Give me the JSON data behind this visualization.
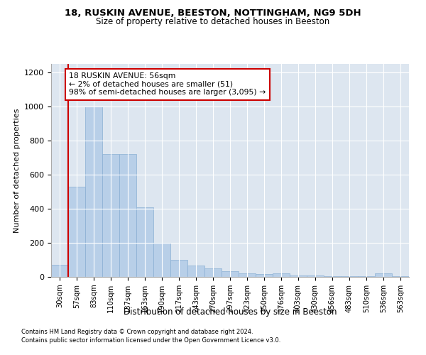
{
  "title1": "18, RUSKIN AVENUE, BEESTON, NOTTINGHAM, NG9 5DH",
  "title2": "Size of property relative to detached houses in Beeston",
  "xlabel": "Distribution of detached houses by size in Beeston",
  "ylabel": "Number of detached properties",
  "footer1": "Contains HM Land Registry data © Crown copyright and database right 2024.",
  "footer2": "Contains public sector information licensed under the Open Government Licence v3.0.",
  "categories": [
    "30sqm",
    "57sqm",
    "83sqm",
    "110sqm",
    "137sqm",
    "163sqm",
    "190sqm",
    "217sqm",
    "243sqm",
    "270sqm",
    "297sqm",
    "323sqm",
    "350sqm",
    "376sqm",
    "403sqm",
    "430sqm",
    "456sqm",
    "483sqm",
    "510sqm",
    "536sqm",
    "563sqm"
  ],
  "values": [
    70,
    530,
    1000,
    720,
    720,
    410,
    200,
    100,
    65,
    48,
    33,
    20,
    18,
    20,
    10,
    10,
    5,
    5,
    5,
    20,
    5
  ],
  "bar_color": "#b8cfe8",
  "bar_edge_color": "#8aafd4",
  "red_line_x": 0.5,
  "annotation_text": "18 RUSKIN AVENUE: 56sqm\n← 2% of detached houses are smaller (51)\n98% of semi-detached houses are larger (3,095) →",
  "annotation_box_color": "#ffffff",
  "annotation_box_edge": "#cc0000",
  "ylim": [
    0,
    1250
  ],
  "yticks": [
    0,
    200,
    400,
    600,
    800,
    1000,
    1200
  ],
  "bg_color": "#dde6f0",
  "fig_bg": "#ffffff",
  "grid_color": "#ffffff",
  "title_fontsize": 9.5,
  "subtitle_fontsize": 8.5
}
